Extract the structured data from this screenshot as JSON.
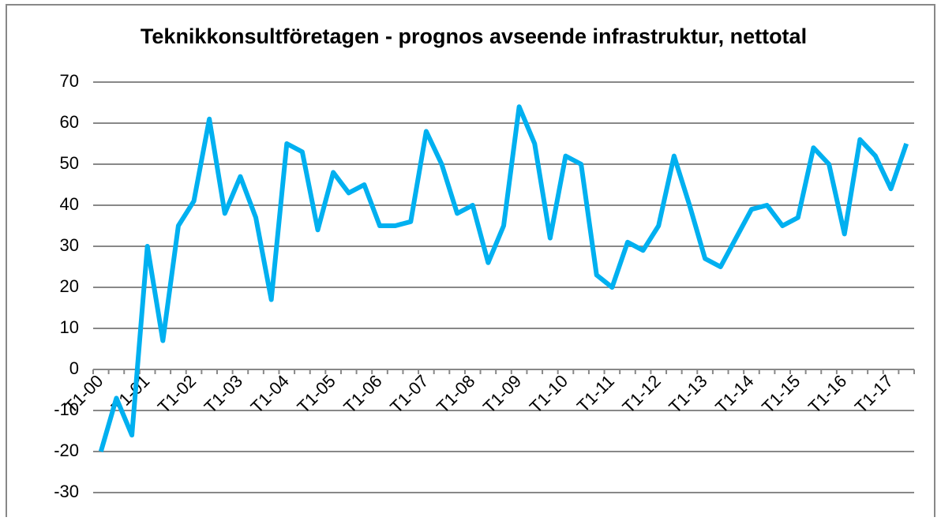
{
  "chart_data": {
    "type": "line",
    "title": "Teknikkonsultföretagen - prognos avseende infrastruktur, nettotal",
    "categories": [
      "T1-00",
      null,
      null,
      "T1-01",
      null,
      null,
      "T1-02",
      null,
      null,
      "T1-03",
      null,
      null,
      "T1-04",
      null,
      null,
      "T1-05",
      null,
      null,
      "T1-06",
      null,
      null,
      "T1-07",
      null,
      null,
      "T1-08",
      null,
      null,
      "T1-09",
      null,
      null,
      "T1-10",
      null,
      null,
      "T1-11",
      null,
      null,
      "T1-12",
      null,
      null,
      "T1-13",
      null,
      null,
      "T1-14",
      null,
      null,
      "T1-15",
      null,
      null,
      "T1-16",
      null,
      null,
      "T1-17",
      null
    ],
    "values": [
      -20,
      -7,
      -16,
      30,
      7,
      35,
      41,
      61,
      38,
      47,
      37,
      17,
      55,
      53,
      34,
      48,
      43,
      45,
      35,
      35,
      36,
      58,
      50,
      38,
      40,
      26,
      35,
      64,
      55,
      32,
      52,
      50,
      23,
      20,
      31,
      29,
      35,
      52,
      40,
      27,
      25,
      32,
      39,
      40,
      35,
      37,
      54,
      50,
      33,
      56,
      52,
      44,
      55
    ],
    "color": "#00b0f0",
    "ylim": [
      -30,
      70
    ],
    "yticks": [
      -30,
      -20,
      -10,
      0,
      10,
      20,
      30,
      40,
      50,
      60,
      70
    ],
    "grid": true
  }
}
